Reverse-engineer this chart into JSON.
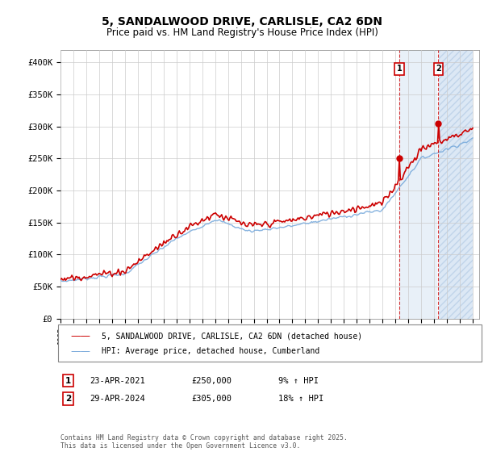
{
  "title": "5, SANDALWOOD DRIVE, CARLISLE, CA2 6DN",
  "subtitle": "Price paid vs. HM Land Registry's House Price Index (HPI)",
  "ylabel_ticks": [
    "£0",
    "£50K",
    "£100K",
    "£150K",
    "£200K",
    "£250K",
    "£300K",
    "£350K",
    "£400K"
  ],
  "ytick_values": [
    0,
    50000,
    100000,
    150000,
    200000,
    250000,
    300000,
    350000,
    400000
  ],
  "ylim": [
    0,
    420000
  ],
  "hpi_color": "#7aabdc",
  "price_color": "#cc0000",
  "marker1_date": 2021.3,
  "marker2_date": 2024.33,
  "marker1_price": 250000,
  "marker2_price": 305000,
  "legend_label1": "5, SANDALWOOD DRIVE, CARLISLE, CA2 6DN (detached house)",
  "legend_label2": "HPI: Average price, detached house, Cumberland",
  "annotation1_date": "23-APR-2021",
  "annotation1_price": "£250,000",
  "annotation1_hpi": "9% ↑ HPI",
  "annotation2_date": "29-APR-2024",
  "annotation2_price": "£305,000",
  "annotation2_hpi": "18% ↑ HPI",
  "footer": "Contains HM Land Registry data © Crown copyright and database right 2025.\nThis data is licensed under the Open Government Licence v3.0.",
  "future_fill_color": "#dce8f5",
  "future_hatch_color": "#c0d4ea",
  "grid_color": "#cccccc"
}
